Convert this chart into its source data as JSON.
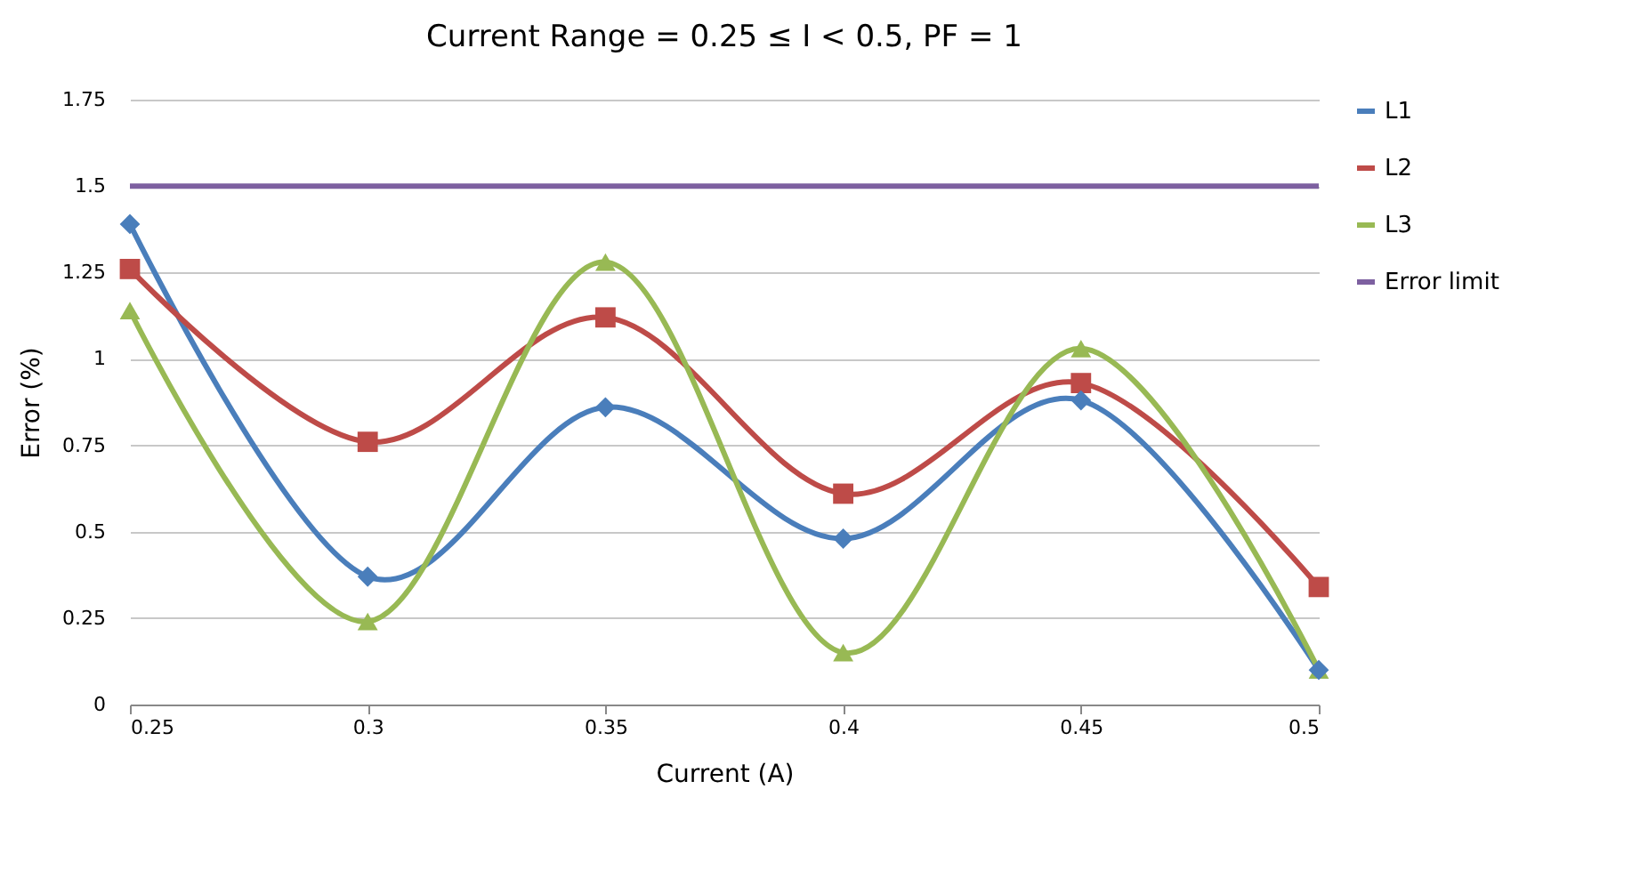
{
  "chart_data": {
    "type": "line",
    "title": "Current Range = 0.25 ≤ I < 0.5, PF = 1",
    "xlabel": "Current (A)",
    "ylabel": "Error (%)",
    "x": [
      0.25,
      0.3,
      0.35,
      0.4,
      0.45,
      0.5
    ],
    "series": [
      {
        "name": "L1",
        "color": "#4a7ebb",
        "marker": "diamond",
        "values": [
          1.39,
          0.37,
          0.86,
          0.48,
          0.88,
          0.1
        ]
      },
      {
        "name": "L2",
        "color": "#be4b48",
        "marker": "square",
        "values": [
          1.26,
          0.76,
          1.12,
          0.61,
          0.93,
          0.34
        ]
      },
      {
        "name": "L3",
        "color": "#98b954",
        "marker": "triangle",
        "values": [
          1.14,
          0.24,
          1.28,
          0.15,
          1.03,
          0.1
        ]
      },
      {
        "name": "Error limit",
        "color": "#7d60a0",
        "marker": "none",
        "values": [
          1.5,
          1.5,
          1.5,
          1.5,
          1.5,
          1.5
        ]
      }
    ],
    "xlim": [
      0.25,
      0.5
    ],
    "xticks": [
      0.25,
      0.3,
      0.35,
      0.4,
      0.45,
      0.5
    ],
    "ylim": [
      0,
      1.75
    ],
    "yticks": [
      0,
      0.25,
      0.5,
      0.75,
      1,
      1.25,
      1.5,
      1.75
    ],
    "grid": "y",
    "legend": "right",
    "line_style": "solid"
  }
}
